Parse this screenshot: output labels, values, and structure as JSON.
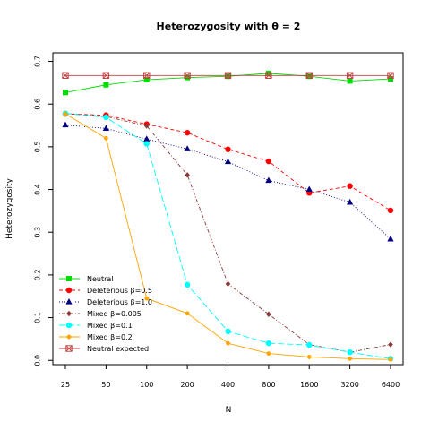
{
  "chart_data": {
    "type": "line",
    "title": "Heterozygosity with  θ = 2",
    "xlabel": "N",
    "ylabel": "Heterozygosity",
    "categories": [
      "25",
      "50",
      "100",
      "200",
      "400",
      "800",
      "1600",
      "3200",
      "6400"
    ],
    "ylim": [
      -0.01,
      0.72
    ],
    "yticks": [
      "0.0",
      "0.1",
      "0.2",
      "0.3",
      "0.4",
      "0.5",
      "0.6",
      "0.7"
    ],
    "grid": false,
    "legend_position": "bottom-left",
    "series": [
      {
        "name": "Neutral",
        "color": "#00dd00",
        "marker": "square",
        "dash": "solid",
        "values": [
          0.627,
          0.645,
          0.657,
          0.662,
          0.665,
          0.672,
          0.665,
          0.654,
          0.659
        ]
      },
      {
        "name": "Deleterious β=0.5",
        "color": "#ff0000",
        "marker": "circle",
        "dash": "dashed",
        "values": [
          0.577,
          0.574,
          0.553,
          0.533,
          0.494,
          0.466,
          0.392,
          0.408,
          0.351
        ]
      },
      {
        "name": "Deleterious β=1.0",
        "color": "#000080",
        "marker": "triangle",
        "dash": "dotted",
        "values": [
          0.551,
          0.543,
          0.518,
          0.495,
          0.465,
          0.421,
          0.4,
          0.37,
          0.284
        ]
      },
      {
        "name": "Mixed β=0.005",
        "color": "#8b3a3a",
        "marker": "diamond",
        "dash": "dotdash",
        "values": [
          0.578,
          0.571,
          0.549,
          0.434,
          0.179,
          0.108,
          0.037,
          0.019,
          0.037
        ]
      },
      {
        "name": "Mixed β=0.1",
        "color": "#00ffff",
        "marker": "circle",
        "dash": "longdash",
        "values": [
          0.578,
          0.569,
          0.507,
          0.177,
          0.068,
          0.04,
          0.036,
          0.019,
          0.004
        ]
      },
      {
        "name": "Mixed β=0.2",
        "color": "#ffa500",
        "marker": "smallcircle",
        "dash": "solid",
        "values": [
          0.577,
          0.52,
          0.145,
          0.11,
          0.04,
          0.016,
          0.008,
          0.004,
          0.002
        ]
      },
      {
        "name": "Neutral expected",
        "color": "#c04040",
        "marker": "boxx",
        "dash": "solid",
        "values": [
          0.667,
          0.667,
          0.667,
          0.667,
          0.667,
          0.667,
          0.667,
          0.667,
          0.667
        ]
      }
    ]
  }
}
